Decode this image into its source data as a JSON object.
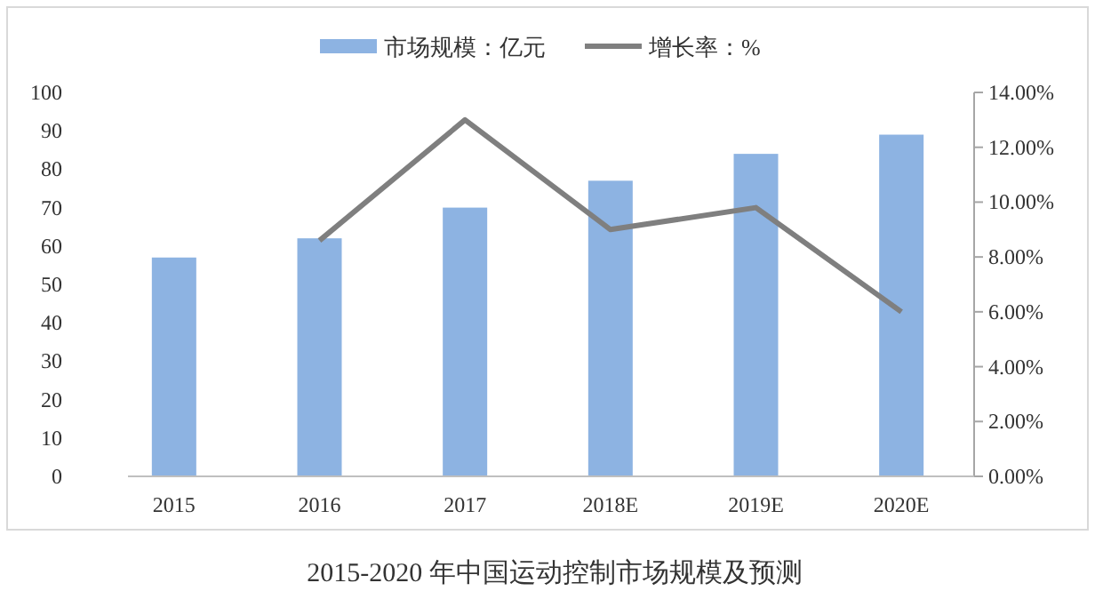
{
  "chart_data": {
    "type": "bar",
    "title": "2015-2020 年中国运动控制市场规模及预测",
    "categories": [
      "2015",
      "2016",
      "2017",
      "2018E",
      "2019E",
      "2020E"
    ],
    "series": [
      {
        "name": "市场规模：亿元",
        "color": "#8db3e2",
        "values": [
          57,
          62,
          70,
          77,
          84,
          89
        ]
      },
      {
        "name": "增长率：%",
        "type": "line",
        "axis": "y2",
        "color": "#7f7f7f",
        "values": [
          null,
          8.6,
          13.0,
          9.0,
          9.8,
          6.0
        ]
      }
    ],
    "ylim": [
      0,
      100
    ],
    "yticks": [
      0,
      10,
      20,
      30,
      40,
      50,
      60,
      70,
      80,
      90,
      100
    ],
    "y2lim": [
      0,
      14
    ],
    "y2ticks": [
      {
        "value": 0,
        "label": "0.00%"
      },
      {
        "value": 2,
        "label": "2.00%"
      },
      {
        "value": 4,
        "label": "4.00%"
      },
      {
        "value": 6,
        "label": "6.00%"
      },
      {
        "value": 8,
        "label": "8.00%"
      },
      {
        "value": 10,
        "label": "10.00%"
      },
      {
        "value": 12,
        "label": "12.00%"
      },
      {
        "value": 14,
        "label": "14.00%"
      }
    ],
    "legend": "top",
    "grid": false,
    "marker": "none",
    "line_style": "solid"
  }
}
